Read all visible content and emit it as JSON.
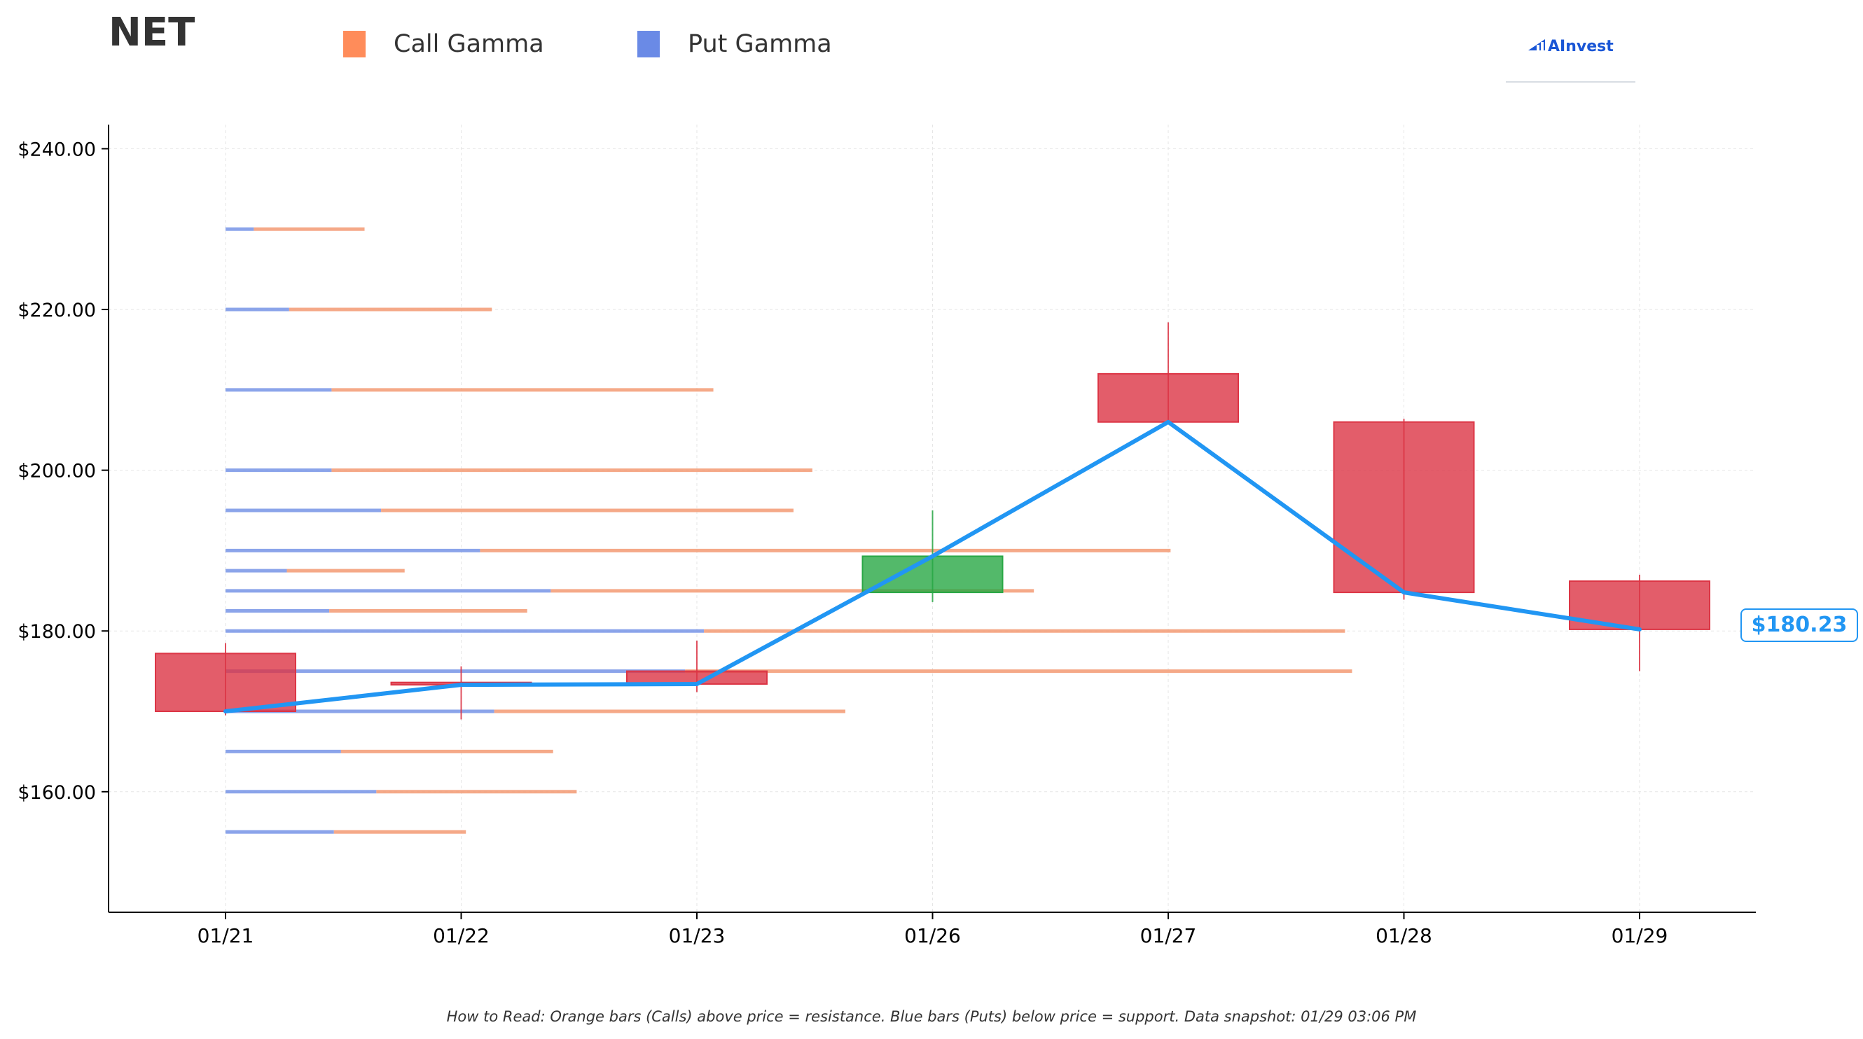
{
  "header": {
    "ticker": "NET",
    "legend": [
      {
        "label": "Call Gamma",
        "color": "#ff8c5a"
      },
      {
        "label": "Put Gamma",
        "color": "#6a8ae6"
      }
    ],
    "brand": "AInvest"
  },
  "current_price_label": "$180.23",
  "footnote": "How to Read: Orange bars (Calls) above price = resistance. Blue bars (Puts) below price = support. Data snapshot: 01/29 03:06 PM",
  "colors": {
    "call": "#f4a07c",
    "put": "#7f9be8",
    "bear": "#dc3545",
    "bull": "#28a745",
    "price_line": "#2196f3",
    "axis": "#000000",
    "grid": "#e6e6e6"
  },
  "chart_data": {
    "type": "bar",
    "title": "NET",
    "x_dates": [
      "01/21",
      "01/22",
      "01/23",
      "01/26",
      "01/27",
      "01/28",
      "01/29"
    ],
    "ylim": [
      145,
      243
    ],
    "y_ticks": [
      160,
      180,
      200,
      220,
      240
    ],
    "y_tick_labels": [
      "$160.00",
      "$180.00",
      "$200.00",
      "$220.00",
      "$240.00"
    ],
    "grid": true,
    "candles": [
      {
        "date": "01/21",
        "open": 177.2,
        "high": 178.5,
        "low": 169.5,
        "close": 170.0
      },
      {
        "date": "01/22",
        "open": 173.6,
        "high": 175.6,
        "low": 169.0,
        "close": 173.3
      },
      {
        "date": "01/23",
        "open": 175.0,
        "high": 178.8,
        "low": 172.4,
        "close": 173.4
      },
      {
        "date": "01/26",
        "open": 184.8,
        "high": 195.0,
        "low": 183.6,
        "close": 189.3
      },
      {
        "date": "01/27",
        "open": 212.0,
        "high": 218.4,
        "low": 206.0,
        "close": 206.0
      },
      {
        "date": "01/28",
        "open": 206.0,
        "high": 206.4,
        "low": 183.9,
        "close": 184.8
      },
      {
        "date": "01/29",
        "open": 186.2,
        "high": 187.0,
        "low": 175.0,
        "close": 180.2
      }
    ],
    "price_line": {
      "name": "Price",
      "x": [
        "01/21",
        "01/22",
        "01/23",
        "01/26",
        "01/27",
        "01/28",
        "01/29"
      ],
      "values": [
        170.0,
        173.3,
        173.4,
        189.3,
        206.0,
        184.8,
        180.2
      ]
    },
    "gamma_levels": [
      {
        "strike": 230,
        "put": 0.12,
        "call": 0.47
      },
      {
        "strike": 220,
        "put": 0.27,
        "call": 0.86
      },
      {
        "strike": 210,
        "put": 0.45,
        "call": 1.62
      },
      {
        "strike": 200,
        "put": 0.45,
        "call": 2.04
      },
      {
        "strike": 195,
        "put": 0.66,
        "call": 1.75
      },
      {
        "strike": 190,
        "put": 1.08,
        "call": 2.93
      },
      {
        "strike": 187.5,
        "put": 0.26,
        "call": 0.5
      },
      {
        "strike": 185,
        "put": 1.38,
        "call": 2.05
      },
      {
        "strike": 182.5,
        "put": 0.44,
        "call": 0.84
      },
      {
        "strike": 180,
        "put": 2.03,
        "call": 2.72
      },
      {
        "strike": 175,
        "put": 1.95,
        "call": 2.83
      },
      {
        "strike": 170,
        "put": 1.14,
        "call": 1.49
      },
      {
        "strike": 165,
        "put": 0.49,
        "call": 0.9
      },
      {
        "strike": 160,
        "put": 0.64,
        "call": 0.85
      },
      {
        "strike": 155,
        "put": 0.46,
        "call": 0.56
      }
    ]
  }
}
